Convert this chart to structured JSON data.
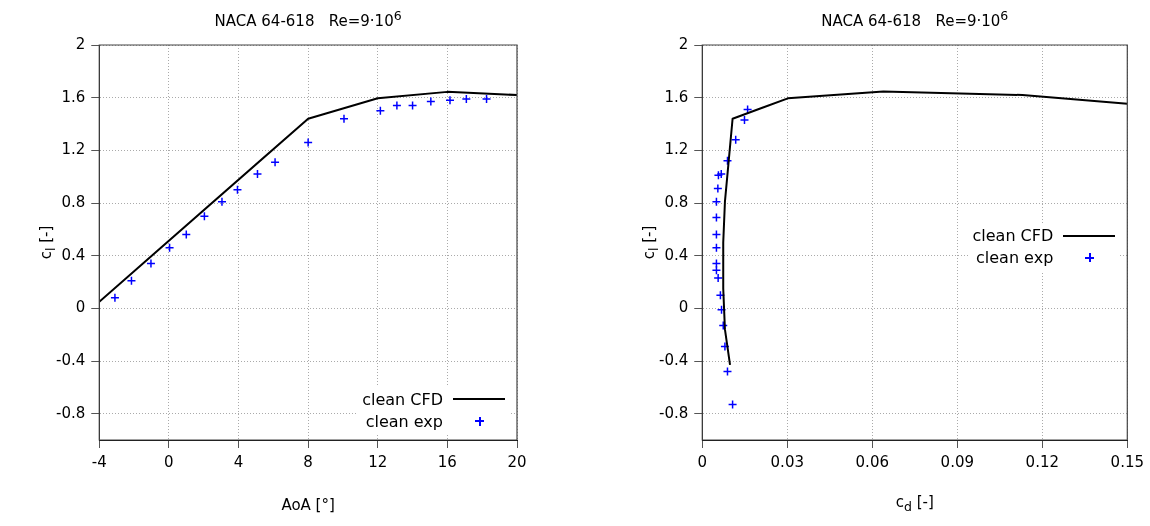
{
  "chart_data": [
    {
      "type": "line",
      "title": "NACA 64-618   Re=9·10$^{6}$",
      "xlabel": "AoA [°]",
      "ylabel": "c$_{l}$ [-]",
      "xlim": [
        -4,
        20
      ],
      "xticks": [
        -4,
        0,
        4,
        8,
        12,
        16,
        20
      ],
      "ylim": [
        -1,
        2
      ],
      "yticks": [
        -0.8,
        -0.4,
        0,
        0.4,
        0.8,
        1.2,
        1.6,
        2
      ],
      "grid": true,
      "legend": "bottom right",
      "series": [
        {
          "name": "clean CFD",
          "color": "#000000",
          "marker": "none",
          "x": [
            -4,
            8,
            12,
            16,
            20
          ],
          "values": [
            0.05,
            1.44,
            1.595,
            1.644,
            1.62
          ]
        },
        {
          "name": "clean exp",
          "type": "scatter",
          "color": "#0000ff",
          "marker": "cross",
          "x": [
            -3.1,
            -2.15,
            -1.03,
            0.04,
            1.0,
            2.04,
            3.05,
            3.94,
            5.09,
            6.1,
            8.0,
            10.06,
            12.15,
            13.1,
            14.0,
            15.05,
            16.15,
            17.09,
            18.25
          ],
          "values": [
            0.08,
            0.21,
            0.34,
            0.46,
            0.56,
            0.7,
            0.81,
            0.9,
            1.02,
            1.11,
            1.26,
            1.44,
            1.5,
            1.54,
            1.54,
            1.57,
            1.58,
            1.59,
            1.59
          ]
        }
      ]
    },
    {
      "type": "line",
      "title": "NACA 64-618   Re=9·10$^{6}$",
      "xlabel": "c$_{d}$ [-]",
      "ylabel": "c$_{l}$ [-]",
      "xlim": [
        0,
        0.15
      ],
      "xticks": [
        0,
        0.03,
        0.06,
        0.09,
        0.12,
        0.15
      ],
      "ylim": [
        -1,
        2
      ],
      "yticks": [
        -0.8,
        -0.4,
        0,
        0.4,
        0.8,
        1.2,
        1.6,
        2
      ],
      "grid": true,
      "legend": "right",
      "series": [
        {
          "name": "clean CFD",
          "color": "#000000",
          "marker": "none",
          "x": [
            0.0098,
            0.008,
            0.0074,
            0.0074,
            0.008,
            0.0092,
            0.0107,
            0.0302,
            0.0639,
            0.113,
            0.15
          ],
          "values": [
            -0.43,
            -0.16,
            0.15,
            0.5,
            0.81,
            1.09,
            1.44,
            1.595,
            1.646,
            1.62,
            1.554
          ]
        },
        {
          "name": "clean exp",
          "type": "scatter",
          "color": "#0000ff",
          "marker": "cross",
          "x": [
            0.0107,
            0.0089,
            0.008,
            0.0074,
            0.0068,
            0.0064,
            0.0056,
            0.005,
            0.005,
            0.005,
            0.005,
            0.005,
            0.005,
            0.0055,
            0.0057,
            0.0067,
            0.0089,
            0.0118,
            0.0149,
            0.016
          ],
          "values": [
            -0.73,
            -0.48,
            -0.29,
            -0.13,
            -0.01,
            0.1,
            0.23,
            0.29,
            0.34,
            0.46,
            0.56,
            0.69,
            0.81,
            0.91,
            1.01,
            1.02,
            1.12,
            1.28,
            1.43,
            1.51
          ]
        }
      ]
    }
  ]
}
